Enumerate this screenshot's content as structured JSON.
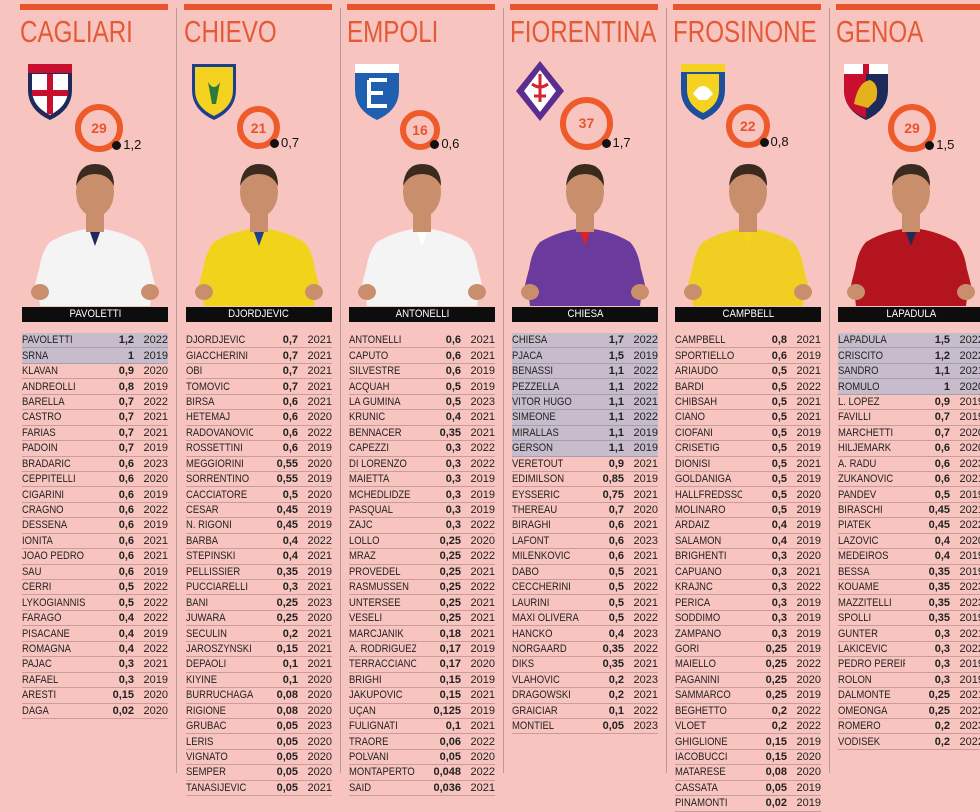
{
  "colors": {
    "background": "#f8c4bf",
    "accent": "#e8542e",
    "highlight_row": "#c7bccb",
    "name_bar": "#0d0d0d"
  },
  "teams": [
    {
      "name": "CAGLIARI",
      "ring_value": "29",
      "dot_value": "1,2",
      "featured_player": "PAVOLETTI",
      "highlighted_rows": 2,
      "logo_icon": "cagliari-crest-icon",
      "colors": {
        "primary": "#c8102e",
        "secondary": "#1d2a5a",
        "jersey": "#f4f4f4"
      },
      "players": [
        [
          "PAVOLETTI",
          "1,2",
          "2022"
        ],
        [
          "SRNA",
          "1",
          "2019"
        ],
        [
          "KLAVAN",
          "0,9",
          "2020"
        ],
        [
          "ANDREOLLI",
          "0,8",
          "2019"
        ],
        [
          "BARELLA",
          "0,7",
          "2022"
        ],
        [
          "CASTRO",
          "0,7",
          "2021"
        ],
        [
          "FARIAS",
          "0,7",
          "2021"
        ],
        [
          "PADOIN",
          "0,7",
          "2019"
        ],
        [
          "BRADARIC",
          "0,6",
          "2023"
        ],
        [
          "CEPPITELLI",
          "0,6",
          "2020"
        ],
        [
          "CIGARINI",
          "0,6",
          "2019"
        ],
        [
          "CRAGNO",
          "0,6",
          "2022"
        ],
        [
          "DESSENA",
          "0,6",
          "2019"
        ],
        [
          "IONITA",
          "0,6",
          "2021"
        ],
        [
          "JOAO PEDRO",
          "0,6",
          "2021"
        ],
        [
          "SAU",
          "0,6",
          "2019"
        ],
        [
          "CERRI",
          "0,5",
          "2022"
        ],
        [
          "LYKOGIANNIS",
          "0,5",
          "2022"
        ],
        [
          "FARAGÒ",
          "0,4",
          "2022"
        ],
        [
          "PISACANE",
          "0,4",
          "2019"
        ],
        [
          "ROMAGNA",
          "0,4",
          "2022"
        ],
        [
          "PAJAC",
          "0,3",
          "2021"
        ],
        [
          "RAFAEL",
          "0,3",
          "2019"
        ],
        [
          "ARESTI",
          "0,15",
          "2020"
        ],
        [
          "DAGA",
          "0,02",
          "2020"
        ]
      ]
    },
    {
      "name": "CHIEVO",
      "ring_value": "21",
      "dot_value": "0,7",
      "featured_player": "DJORDJEVIC",
      "highlighted_rows": 0,
      "logo_icon": "chievo-crest-icon",
      "colors": {
        "primary": "#f4d21f",
        "secondary": "#1d3f8f",
        "jersey": "#f2d31b"
      },
      "players": [
        [
          "DJORDJEVIC",
          "0,7",
          "2021"
        ],
        [
          "GIACCHERINI",
          "0,7",
          "2021"
        ],
        [
          "OBI",
          "0,7",
          "2021"
        ],
        [
          "TOMOVIC",
          "0,7",
          "2021"
        ],
        [
          "BIRSA",
          "0,6",
          "2021"
        ],
        [
          "HETEMAJ",
          "0,6",
          "2020"
        ],
        [
          "RADOVANOVIC",
          "0,6",
          "2022"
        ],
        [
          "ROSSETTINI",
          "0,6",
          "2019"
        ],
        [
          "MEGGIORINI",
          "0,55",
          "2020"
        ],
        [
          "SORRENTINO",
          "0,55",
          "2019"
        ],
        [
          "CACCIATORE",
          "0,5",
          "2020"
        ],
        [
          "CESAR",
          "0,45",
          "2019"
        ],
        [
          "N. RIGONI",
          "0,45",
          "2019"
        ],
        [
          "BARBA",
          "0,4",
          "2022"
        ],
        [
          "STEPINSKI",
          "0,4",
          "2021"
        ],
        [
          "PELLISSIER",
          "0,35",
          "2019"
        ],
        [
          "PUCCIARELLI",
          "0,3",
          "2021"
        ],
        [
          "BANI",
          "0,25",
          "2023"
        ],
        [
          "JUWARA",
          "0,25",
          "2020"
        ],
        [
          "SECULIN",
          "0,2",
          "2021"
        ],
        [
          "JAROSZYNSKI",
          "0,15",
          "2021"
        ],
        [
          "DEPAOLI",
          "0,1",
          "2021"
        ],
        [
          "KIYINE",
          "0,1",
          "2020"
        ],
        [
          "BURRUCHAGA",
          "0,08",
          "2020"
        ],
        [
          "RIGIONE",
          "0,08",
          "2020"
        ],
        [
          "GRUBAC",
          "0,05",
          "2023"
        ],
        [
          "LERIS",
          "0,05",
          "2020"
        ],
        [
          "VIGNATO",
          "0,05",
          "2020"
        ],
        [
          "SEMPER",
          "0,05",
          "2020"
        ],
        [
          "TANASIJEVIC",
          "0,05",
          "2021"
        ]
      ]
    },
    {
      "name": "EMPOLI",
      "ring_value": "16",
      "dot_value": "0,6",
      "featured_player": "ANTONELLI",
      "highlighted_rows": 0,
      "logo_icon": "empoli-crest-icon",
      "colors": {
        "primary": "#1f5fb0",
        "secondary": "#ffffff",
        "jersey": "#f4f4f4"
      },
      "players": [
        [
          "ANTONELLI",
          "0,6",
          "2021"
        ],
        [
          "CAPUTO",
          "0,6",
          "2021"
        ],
        [
          "SILVESTRE",
          "0,6",
          "2019"
        ],
        [
          "ACQUAH",
          "0,5",
          "2019"
        ],
        [
          "LA GUMINA",
          "0,5",
          "2023"
        ],
        [
          "KRUNIC",
          "0,4",
          "2021"
        ],
        [
          "BENNACER",
          "0,35",
          "2021"
        ],
        [
          "CAPEZZI",
          "0,3",
          "2022"
        ],
        [
          "DI LORENZO",
          "0,3",
          "2022"
        ],
        [
          "MAIETTA",
          "0,3",
          "2019"
        ],
        [
          "MCHEDLIDZE",
          "0,3",
          "2019"
        ],
        [
          "PASQUAL",
          "0,3",
          "2019"
        ],
        [
          "ZAJC",
          "0,3",
          "2022"
        ],
        [
          "LOLLO",
          "0,25",
          "2020"
        ],
        [
          "MRAZ",
          "0,25",
          "2022"
        ],
        [
          "PROVEDEL",
          "0,25",
          "2021"
        ],
        [
          "RASMUSSEN",
          "0,25",
          "2022"
        ],
        [
          "UNTERSEE",
          "0,25",
          "2021"
        ],
        [
          "VESELI",
          "0,25",
          "2021"
        ],
        [
          "MARCJANIK",
          "0,18",
          "2021"
        ],
        [
          "A. RODRIGUEZ",
          "0,17",
          "2019"
        ],
        [
          "TERRACCIANO",
          "0,17",
          "2020"
        ],
        [
          "BRIGHI",
          "0,15",
          "2019"
        ],
        [
          "JAKUPOVIC",
          "0,15",
          "2021"
        ],
        [
          "UÇAN",
          "0,125",
          "2019"
        ],
        [
          "FULIGNATI",
          "0,1",
          "2021"
        ],
        [
          "TRAORE",
          "0,06",
          "2022"
        ],
        [
          "POLVANI",
          "0,05",
          "2020"
        ],
        [
          "MONTAPERTO",
          "0,048",
          "2022"
        ],
        [
          "SAID",
          "0,036",
          "2021"
        ]
      ]
    },
    {
      "name": "FIORENTINA",
      "ring_value": "37",
      "dot_value": "1,7",
      "featured_player": "CHIESA",
      "highlighted_rows": 8,
      "logo_icon": "fiorentina-crest-icon",
      "colors": {
        "primary": "#5b2d8e",
        "secondary": "#d8232a",
        "jersey": "#6a3a9c"
      },
      "players": [
        [
          "CHIESA",
          "1,7",
          "2022"
        ],
        [
          "PJACA",
          "1,5",
          "2019"
        ],
        [
          "BENASSI",
          "1,1",
          "2022"
        ],
        [
          "PEZZELLA",
          "1,1",
          "2022"
        ],
        [
          "VITOR HUGO",
          "1,1",
          "2021"
        ],
        [
          "SIMEONE",
          "1,1",
          "2022"
        ],
        [
          "MIRALLAS",
          "1,1",
          "2019"
        ],
        [
          "GERSON",
          "1,1",
          "2019"
        ],
        [
          "VERETOUT",
          "0,9",
          "2021"
        ],
        [
          "EDIMILSON",
          "0,85",
          "2019"
        ],
        [
          "EYSSERIC",
          "0,75",
          "2021"
        ],
        [
          "THEREAU",
          "0,7",
          "2020"
        ],
        [
          "BIRAGHI",
          "0,6",
          "2021"
        ],
        [
          "LAFONT",
          "0,6",
          "2023"
        ],
        [
          "MILENKOVIC",
          "0,6",
          "2021"
        ],
        [
          "DABO",
          "0,5",
          "2021"
        ],
        [
          "CECCHERINI",
          "0,5",
          "2022"
        ],
        [
          "LAURINI",
          "0,5",
          "2021"
        ],
        [
          "MAXI OLIVERA",
          "0,5",
          "2022"
        ],
        [
          "HANCKO",
          "0,4",
          "2023"
        ],
        [
          "NORGAARD",
          "0,35",
          "2022"
        ],
        [
          "DIKS",
          "0,35",
          "2021"
        ],
        [
          "VLAHOVIC",
          "0,2",
          "2023"
        ],
        [
          "DRAGOWSKI",
          "0,2",
          "2021"
        ],
        [
          "GRAICIAR",
          "0,1",
          "2022"
        ],
        [
          "MONTIEL",
          "0,05",
          "2023"
        ]
      ]
    },
    {
      "name": "FROSINONE",
      "ring_value": "22",
      "dot_value": "0,8",
      "featured_player": "CAMPBELL",
      "highlighted_rows": 0,
      "logo_icon": "frosinone-crest-icon",
      "colors": {
        "primary": "#1d4f9c",
        "secondary": "#f4d21f",
        "jersey": "#f0cf22"
      },
      "players": [
        [
          "CAMPBELL",
          "0,8",
          "2021"
        ],
        [
          "SPORTIELLO",
          "0,6",
          "2019"
        ],
        [
          "ARIAUDO",
          "0,5",
          "2021"
        ],
        [
          "BARDI",
          "0,5",
          "2022"
        ],
        [
          "CHIBSAH",
          "0,5",
          "2021"
        ],
        [
          "CIANO",
          "0,5",
          "2021"
        ],
        [
          "CIOFANI",
          "0,5",
          "2019"
        ],
        [
          "CRISETIG",
          "0,5",
          "2019"
        ],
        [
          "DIONISI",
          "0,5",
          "2021"
        ],
        [
          "GOLDANIGA",
          "0,5",
          "2019"
        ],
        [
          "HALLFREDSSON",
          "0,5",
          "2020"
        ],
        [
          "MOLINARO",
          "0,5",
          "2019"
        ],
        [
          "ARDAIZ",
          "0,4",
          "2019"
        ],
        [
          "SALAMON",
          "0,4",
          "2019"
        ],
        [
          "BRIGHENTI",
          "0,3",
          "2020"
        ],
        [
          "CAPUANO",
          "0,3",
          "2021"
        ],
        [
          "KRAJNC",
          "0,3",
          "2022"
        ],
        [
          "PERICA",
          "0,3",
          "2019"
        ],
        [
          "SODDIMO",
          "0,3",
          "2019"
        ],
        [
          "ZAMPANO",
          "0,3",
          "2019"
        ],
        [
          "GORI",
          "0,25",
          "2019"
        ],
        [
          "MAIELLO",
          "0,25",
          "2022"
        ],
        [
          "PAGANINI",
          "0,25",
          "2020"
        ],
        [
          "SAMMARCO",
          "0,25",
          "2019"
        ],
        [
          "BEGHETTO",
          "0,2",
          "2022"
        ],
        [
          "VLOET",
          "0,2",
          "2022"
        ],
        [
          "GHIGLIONE",
          "0,15",
          "2019"
        ],
        [
          "IACOBUCCI",
          "0,15",
          "2020"
        ],
        [
          "MATARESE",
          "0,08",
          "2020"
        ],
        [
          "CASSATA",
          "0,05",
          "2019"
        ],
        [
          "PINAMONTI",
          "0,02",
          "2019"
        ]
      ]
    },
    {
      "name": "GENOA",
      "ring_value": "29",
      "dot_value": "1,5",
      "featured_player": "LAPADULA",
      "highlighted_rows": 4,
      "logo_icon": "genoa-crest-icon",
      "colors": {
        "primary": "#c8102e",
        "secondary": "#1d2a5a",
        "jersey": "#b4141e"
      },
      "players": [
        [
          "LAPADULA",
          "1,5",
          "2022"
        ],
        [
          "CRISCITO",
          "1,2",
          "2022"
        ],
        [
          "SANDRO",
          "1,1",
          "2021"
        ],
        [
          "ROMULO",
          "1",
          "2020"
        ],
        [
          "L. LOPEZ",
          "0,9",
          "2019"
        ],
        [
          "FAVILLI",
          "0,7",
          "2019"
        ],
        [
          "MARCHETTI",
          "0,7",
          "2020"
        ],
        [
          "HILJEMARK",
          "0,6",
          "2020"
        ],
        [
          "A. RADU",
          "0,6",
          "2023"
        ],
        [
          "ZUKANOVIC",
          "0,6",
          "2021"
        ],
        [
          "PANDEV",
          "0,5",
          "2019"
        ],
        [
          "BIRASCHI",
          "0,45",
          "2021"
        ],
        [
          "PIATEK",
          "0,45",
          "2022"
        ],
        [
          "LAZOVIC",
          "0,4",
          "2020"
        ],
        [
          "MEDEIROS",
          "0,4",
          "2019"
        ],
        [
          "BESSA",
          "0,35",
          "2019"
        ],
        [
          "KOUAME",
          "0,35",
          "2023"
        ],
        [
          "MAZZITELLI",
          "0,35",
          "2023"
        ],
        [
          "SPOLLI",
          "0,35",
          "2019"
        ],
        [
          "GUNTER",
          "0,3",
          "2021"
        ],
        [
          "LAKICEVIC",
          "0,3",
          "2022"
        ],
        [
          "PEDRO PEREIRA",
          "0,3",
          "2019"
        ],
        [
          "ROLON",
          "0,3",
          "2019"
        ],
        [
          "DALMONTE",
          "0,25",
          "2021"
        ],
        [
          "OMEONGA",
          "0,25",
          "2022"
        ],
        [
          "ROMERO",
          "0,2",
          "2023"
        ],
        [
          "VODISEK",
          "0,2",
          "2022"
        ]
      ]
    }
  ]
}
